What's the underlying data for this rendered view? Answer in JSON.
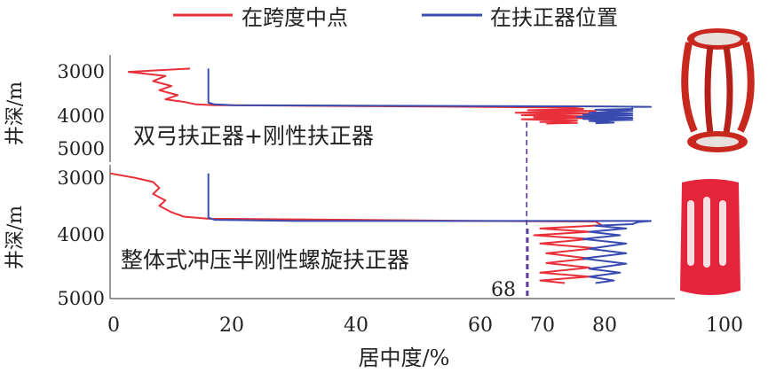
{
  "chart_data": {
    "type": "line",
    "xlabel": "居中度/%",
    "ylabel": "井深/m",
    "xlim": [
      0,
      100
    ],
    "xticks": [
      0,
      20,
      40,
      60,
      70,
      80,
      100
    ],
    "ylim": [
      2800,
      5000
    ],
    "yticks_top": [
      3000,
      4000,
      5000
    ],
    "yticks_bottom": [
      3000,
      4000,
      5000
    ],
    "grid": false,
    "legend_position": "top",
    "legend": [
      {
        "label": "在跨度中点",
        "color": "#e8303a"
      },
      {
        "label": "在扶正器位置",
        "color": "#3a4bb0"
      }
    ],
    "colors": {
      "midspan": "#e8303a",
      "centralizer": "#3a4bb0",
      "marker": "#5a3a9a"
    },
    "panels": [
      {
        "label": "双弓扶正器+刚性扶正器",
        "marker_value": 67.8,
        "marker_label": "",
        "image_icon": "double-bow-centralizer-icon",
        "series": [
          {
            "name": "在跨度中点",
            "points": [
              [
                13,
                2880
              ],
              [
                3,
                2960
              ],
              [
                9,
                3060
              ],
              [
                7,
                3180
              ],
              [
                10,
                3300
              ],
              [
                8,
                3400
              ],
              [
                11,
                3520
              ],
              [
                9,
                3620
              ],
              [
                12,
                3680
              ],
              [
                14,
                3740
              ],
              [
                17,
                3760
              ],
              [
                40,
                3780
              ],
              [
                60,
                3800
              ],
              [
                75,
                3820
              ],
              [
                77,
                3850
              ],
              [
                68,
                3880
              ],
              [
                79,
                3900
              ],
              [
                66,
                3940
              ],
              [
                78,
                3960
              ],
              [
                67,
                4000
              ],
              [
                79,
                4040
              ],
              [
                69,
                4060
              ],
              [
                80,
                4080
              ],
              [
                67,
                4120
              ],
              [
                76,
                4160
              ],
              [
                70,
                4200
              ],
              [
                76,
                4230
              ],
              [
                71,
                4250
              ]
            ]
          },
          {
            "name": "在扶正器位置",
            "points": [
              [
                16,
                2880
              ],
              [
                16,
                3600
              ],
              [
                16,
                3700
              ],
              [
                17,
                3740
              ],
              [
                20,
                3760
              ],
              [
                40,
                3770
              ],
              [
                60,
                3780
              ],
              [
                80,
                3790
              ],
              [
                88,
                3800
              ],
              [
                85,
                3800
              ],
              [
                85,
                3820
              ],
              [
                85,
                3850
              ],
              [
                79,
                3870
              ],
              [
                85,
                3900
              ],
              [
                78,
                3940
              ],
              [
                85,
                3960
              ],
              [
                77,
                3990
              ],
              [
                85,
                4010
              ],
              [
                76,
                4050
              ],
              [
                85,
                4080
              ],
              [
                77,
                4110
              ],
              [
                85,
                4140
              ],
              [
                78,
                4170
              ],
              [
                82,
                4220
              ],
              [
                79,
                4240
              ]
            ]
          }
        ]
      },
      {
        "label": "整体式冲压半刚性螺旋扶正器",
        "marker_value": 68.0,
        "marker_label": "68",
        "image_icon": "stamped-rigid-centralizer-icon",
        "series": [
          {
            "name": "在跨度中点",
            "points": [
              [
                0,
                2880
              ],
              [
                4,
                2960
              ],
              [
                7,
                3040
              ],
              [
                8,
                3150
              ],
              [
                7,
                3260
              ],
              [
                9,
                3380
              ],
              [
                8,
                3480
              ],
              [
                10,
                3600
              ],
              [
                12,
                3680
              ],
              [
                16,
                3720
              ],
              [
                40,
                3740
              ],
              [
                60,
                3760
              ],
              [
                79,
                3770
              ],
              [
                80,
                3840
              ],
              [
                70,
                3900
              ],
              [
                78,
                3960
              ],
              [
                69,
                4020
              ],
              [
                78,
                4080
              ],
              [
                70,
                4150
              ],
              [
                79,
                4220
              ],
              [
                71,
                4300
              ],
              [
                78,
                4380
              ],
              [
                71,
                4450
              ],
              [
                78,
                4520
              ],
              [
                70,
                4600
              ],
              [
                78,
                4660
              ],
              [
                70,
                4720
              ],
              [
                74,
                4760
              ]
            ]
          },
          {
            "name": "在扶正器位置",
            "points": [
              [
                16,
                2880
              ],
              [
                16,
                3600
              ],
              [
                16,
                3700
              ],
              [
                17,
                3740
              ],
              [
                30,
                3760
              ],
              [
                60,
                3760
              ],
              [
                88,
                3760
              ],
              [
                86,
                3780
              ],
              [
                85,
                3820
              ],
              [
                79,
                3850
              ],
              [
                84,
                3900
              ],
              [
                78,
                3960
              ],
              [
                83,
                4020
              ],
              [
                77,
                4080
              ],
              [
                84,
                4150
              ],
              [
                78,
                4230
              ],
              [
                84,
                4300
              ],
              [
                77,
                4380
              ],
              [
                84,
                4460
              ],
              [
                78,
                4540
              ],
              [
                83,
                4600
              ],
              [
                78,
                4660
              ],
              [
                82,
                4720
              ],
              [
                79,
                4760
              ]
            ]
          }
        ]
      }
    ]
  }
}
